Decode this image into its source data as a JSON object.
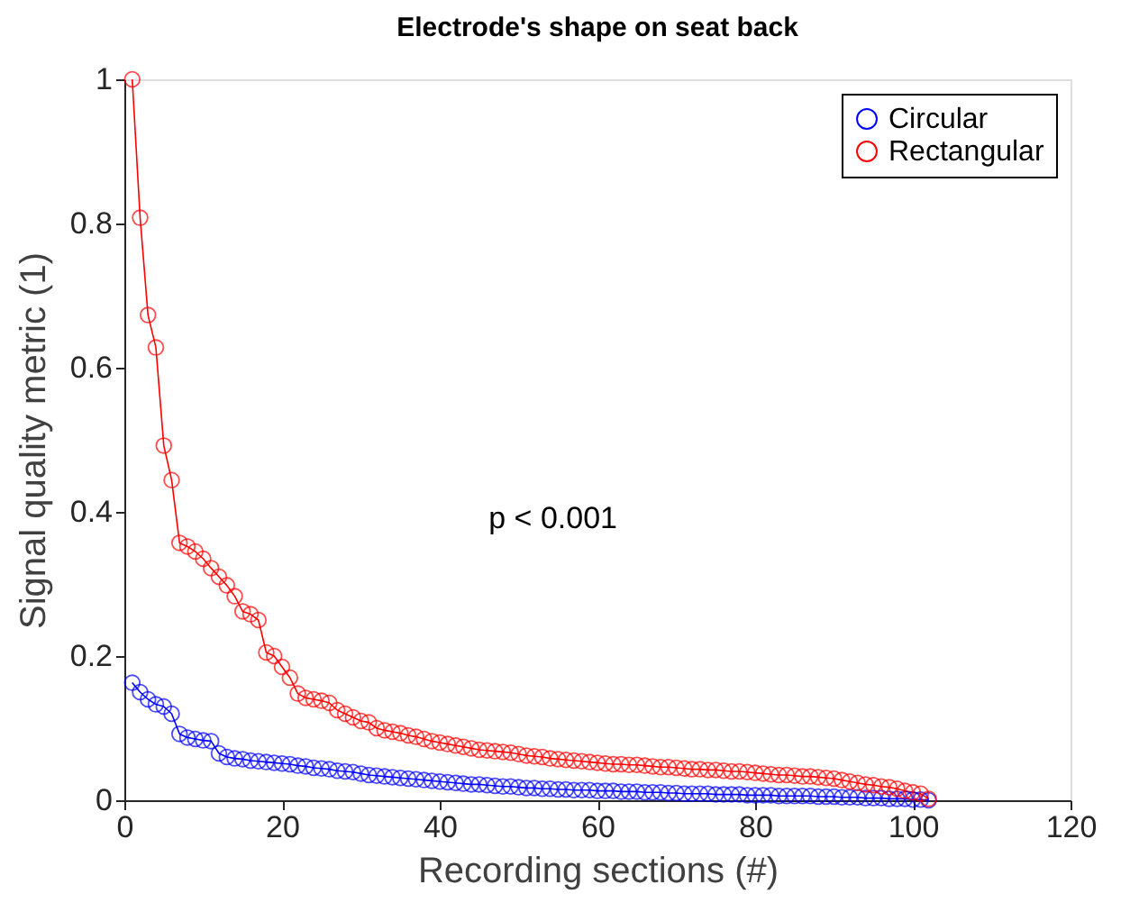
{
  "chart_data": {
    "type": "line",
    "title": "Electrode's shape on seat back",
    "xlabel": "Recording sections (#)",
    "ylabel": "Signal quality metric (1)",
    "x": [
      1,
      2,
      3,
      4,
      5,
      6,
      7,
      8,
      9,
      10,
      11,
      12,
      13,
      14,
      15,
      16,
      17,
      18,
      19,
      20,
      21,
      22,
      23,
      24,
      25,
      26,
      27,
      28,
      29,
      30,
      31,
      32,
      33,
      34,
      35,
      36,
      37,
      38,
      39,
      40,
      41,
      42,
      43,
      44,
      45,
      46,
      47,
      48,
      49,
      50,
      51,
      52,
      53,
      54,
      55,
      56,
      57,
      58,
      59,
      60,
      61,
      62,
      63,
      64,
      65,
      66,
      67,
      68,
      69,
      70,
      71,
      72,
      73,
      74,
      75,
      76,
      77,
      78,
      79,
      80,
      81,
      82,
      83,
      84,
      85,
      86,
      87,
      88,
      89,
      90,
      91,
      92,
      93,
      94,
      95,
      96,
      97,
      98,
      99,
      100,
      101,
      102
    ],
    "series": [
      {
        "name": "Circular",
        "color": "#0000ff",
        "values": [
          0.163,
          0.15,
          0.14,
          0.133,
          0.13,
          0.12,
          0.092,
          0.087,
          0.085,
          0.083,
          0.082,
          0.065,
          0.06,
          0.058,
          0.057,
          0.055,
          0.054,
          0.053,
          0.052,
          0.051,
          0.05,
          0.048,
          0.047,
          0.045,
          0.044,
          0.043,
          0.041,
          0.04,
          0.039,
          0.037,
          0.035,
          0.034,
          0.033,
          0.032,
          0.031,
          0.03,
          0.029,
          0.028,
          0.027,
          0.026,
          0.025,
          0.024,
          0.023,
          0.022,
          0.022,
          0.021,
          0.02,
          0.019,
          0.019,
          0.018,
          0.017,
          0.017,
          0.016,
          0.016,
          0.015,
          0.015,
          0.014,
          0.014,
          0.014,
          0.013,
          0.013,
          0.013,
          0.012,
          0.012,
          0.012,
          0.011,
          0.011,
          0.011,
          0.01,
          0.01,
          0.009,
          0.009,
          0.009,
          0.009,
          0.008,
          0.008,
          0.008,
          0.008,
          0.007,
          0.007,
          0.007,
          0.007,
          0.006,
          0.006,
          0.006,
          0.006,
          0.006,
          0.005,
          0.005,
          0.005,
          0.004,
          0.004,
          0.004,
          0.003,
          0.003,
          0.003,
          0.002,
          0.002,
          0.002,
          0.001,
          0.001,
          0.0
        ]
      },
      {
        "name": "Rectangular",
        "color": "#ff0000",
        "values": [
          1.0,
          0.808,
          0.673,
          0.628,
          0.492,
          0.444,
          0.357,
          0.352,
          0.345,
          0.335,
          0.322,
          0.31,
          0.298,
          0.283,
          0.262,
          0.258,
          0.25,
          0.205,
          0.2,
          0.185,
          0.17,
          0.148,
          0.142,
          0.14,
          0.138,
          0.135,
          0.125,
          0.12,
          0.115,
          0.11,
          0.108,
          0.1,
          0.097,
          0.095,
          0.093,
          0.09,
          0.088,
          0.085,
          0.082,
          0.08,
          0.078,
          0.076,
          0.074,
          0.072,
          0.07,
          0.069,
          0.068,
          0.067,
          0.066,
          0.064,
          0.062,
          0.061,
          0.06,
          0.058,
          0.057,
          0.056,
          0.055,
          0.054,
          0.053,
          0.052,
          0.051,
          0.05,
          0.05,
          0.049,
          0.049,
          0.048,
          0.047,
          0.046,
          0.046,
          0.045,
          0.044,
          0.043,
          0.043,
          0.042,
          0.042,
          0.041,
          0.04,
          0.04,
          0.039,
          0.038,
          0.037,
          0.036,
          0.035,
          0.035,
          0.034,
          0.033,
          0.033,
          0.032,
          0.031,
          0.03,
          0.028,
          0.026,
          0.024,
          0.022,
          0.021,
          0.019,
          0.018,
          0.016,
          0.013,
          0.011,
          0.009,
          0.002
        ]
      }
    ],
    "xlim": [
      0,
      120
    ],
    "xticks": [
      0,
      20,
      40,
      60,
      80,
      100,
      120
    ],
    "ylim": [
      0,
      1
    ],
    "yticks": [
      0,
      0.2,
      0.4,
      0.6,
      0.8,
      1
    ],
    "annotations": [
      "p < 0.001"
    ],
    "legend": "top right",
    "grid": false,
    "marker": "circle",
    "line_style": "solid"
  }
}
